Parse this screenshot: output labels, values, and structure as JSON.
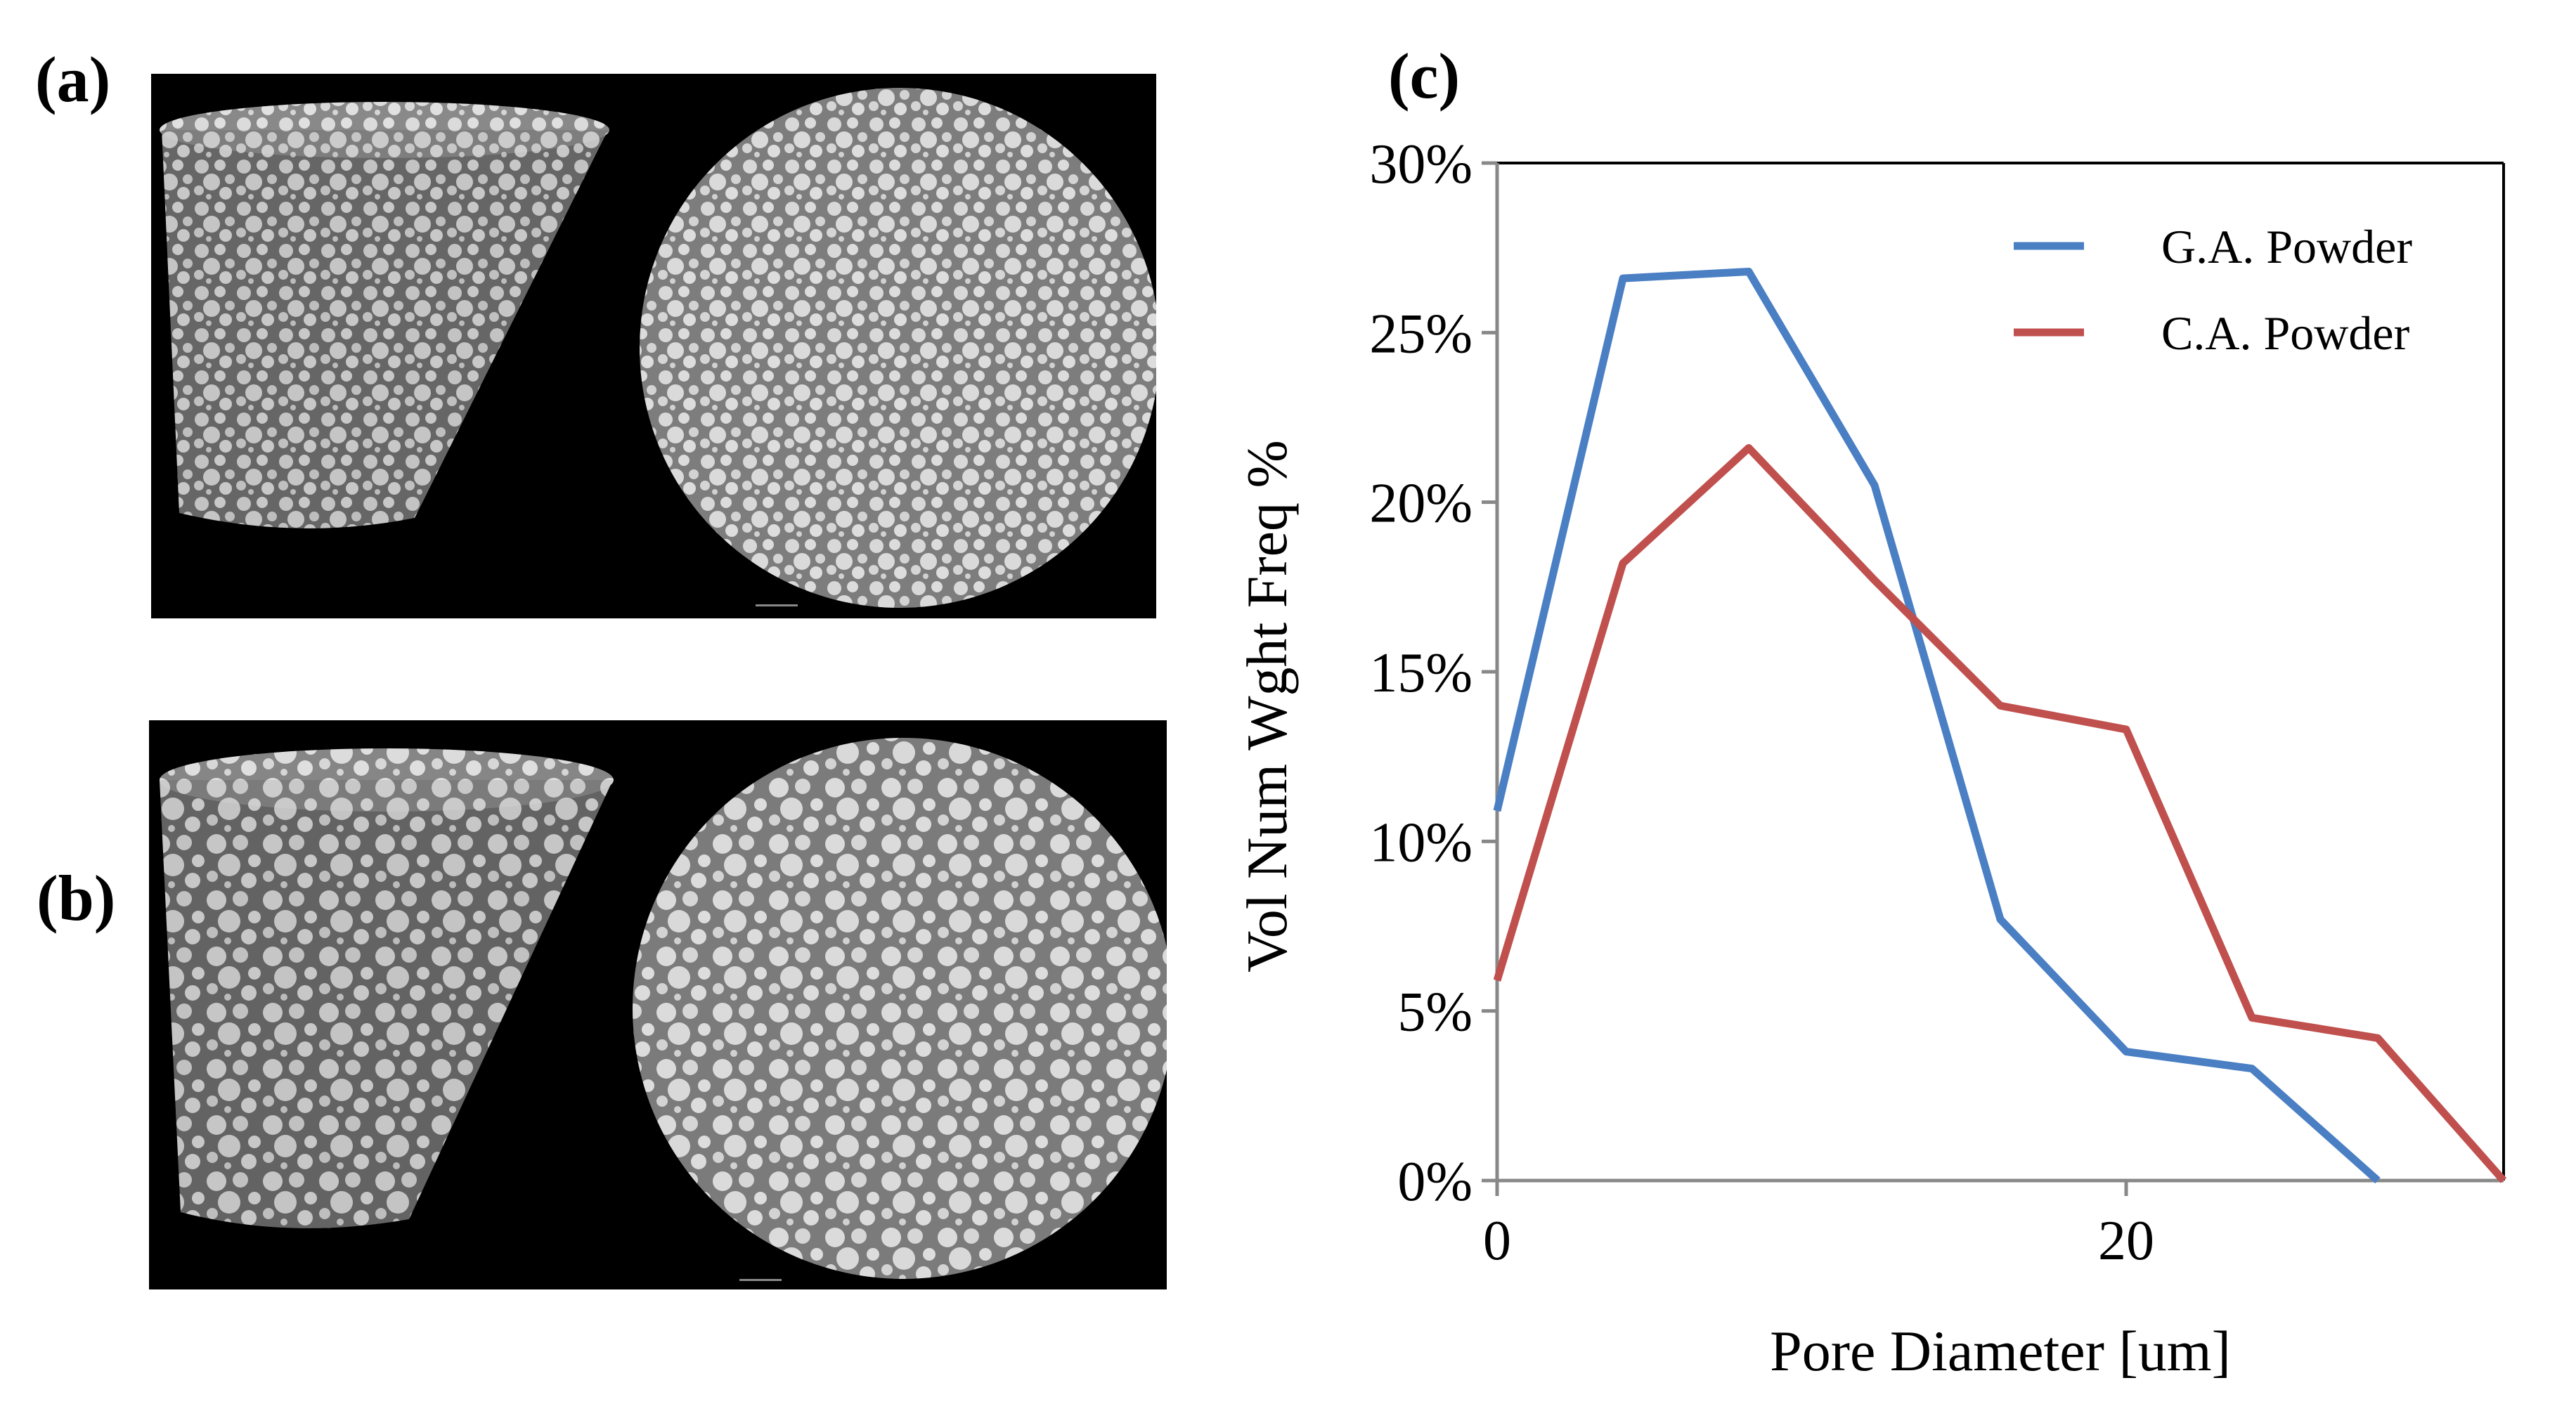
{
  "labels": {
    "a": "(a)",
    "b": "(b)",
    "c": "(c)"
  },
  "images": [
    {
      "panel": "a",
      "depicts": [
        "ct-cylinder-render",
        "ct-cross-section"
      ]
    },
    {
      "panel": "b",
      "depicts": [
        "ct-cylinder-render",
        "ct-cross-section"
      ]
    }
  ],
  "colors": {
    "ga": "#4a7fc4",
    "ca": "#c0504d",
    "axis": "#888888",
    "ct_dark": "#6d6d6d",
    "ct_light": "#d7d7d7"
  },
  "chart_data": {
    "type": "line",
    "title": "",
    "xlabel": "Pore Diameter [um]",
    "ylabel": "Vol Num Wght Freq %",
    "xlim": [
      0,
      32
    ],
    "ylim": [
      0,
      30
    ],
    "xticks": [
      0,
      20
    ],
    "xtick_labels": [
      "0",
      "20"
    ],
    "yticks": [
      0,
      5,
      10,
      15,
      20,
      25,
      30
    ],
    "ytick_labels": [
      "0%",
      "5%",
      "10%",
      "15%",
      "20%",
      "25%",
      "30%"
    ],
    "grid": false,
    "legend_position": "top-right",
    "series": [
      {
        "name": "G.A. Powder",
        "color": "#4a7fc4",
        "x": [
          0,
          4,
          8,
          12,
          16,
          20,
          24,
          28
        ],
        "y": [
          10.9,
          26.6,
          26.8,
          20.5,
          7.7,
          3.8,
          3.3,
          0
        ]
      },
      {
        "name": "C.A. Powder",
        "color": "#c0504d",
        "x": [
          0,
          4,
          8,
          12,
          16,
          20,
          24,
          28,
          32
        ],
        "y": [
          5.9,
          18.2,
          21.6,
          17.7,
          14.0,
          13.3,
          4.8,
          4.2,
          0
        ]
      }
    ]
  }
}
